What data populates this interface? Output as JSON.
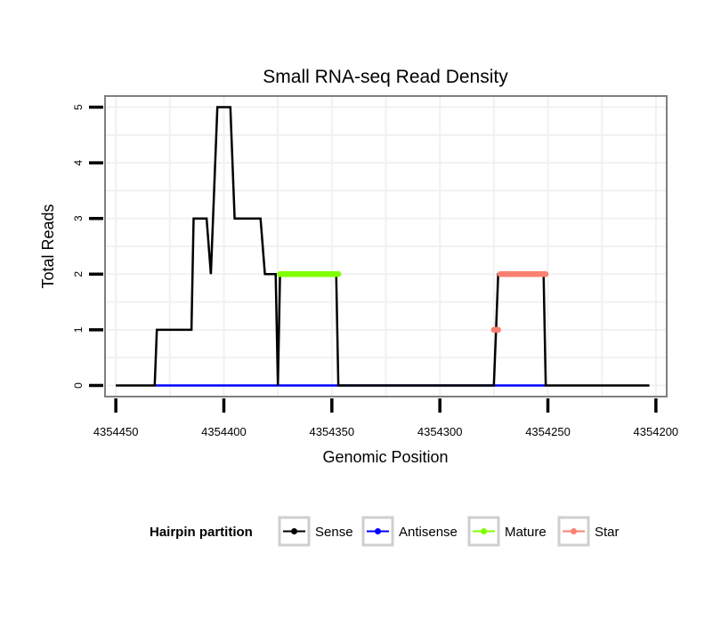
{
  "chart_data": {
    "type": "line",
    "title": "Small RNA-seq Read Density",
    "xlabel": "Genomic Position",
    "ylabel": "Total Reads",
    "x_reversed": true,
    "xlim": [
      4354455,
      4354195
    ],
    "ylim": [
      -0.2,
      5.2
    ],
    "x_ticks": [
      4354450,
      4354400,
      4354350,
      4354300,
      4354250,
      4354200
    ],
    "y_ticks": [
      0,
      1,
      2,
      3,
      4,
      5
    ],
    "x_tick_labels": [
      "4354450",
      "4354400",
      "4354350",
      "4354300",
      "4354250",
      "4354200"
    ],
    "y_tick_labels": [
      "0",
      "1",
      "2",
      "3",
      "4",
      "5"
    ],
    "grid": true,
    "legend": {
      "title": "Hairpin partition",
      "placement": "bottom",
      "entries": [
        {
          "label": "Sense",
          "color": "#000000"
        },
        {
          "label": "Antisense",
          "color": "#0000ff"
        },
        {
          "label": "Mature",
          "color": "#7fff00"
        },
        {
          "label": "Star",
          "color": "#fa8072"
        }
      ]
    },
    "series": [
      {
        "name": "Sense",
        "color": "#000000",
        "points": [
          [
            4354450,
            0
          ],
          [
            4354432,
            0
          ],
          [
            4354431,
            1
          ],
          [
            4354415,
            1
          ],
          [
            4354414,
            3
          ],
          [
            4354408,
            3
          ],
          [
            4354406,
            2
          ],
          [
            4354403,
            5
          ],
          [
            4354397,
            5
          ],
          [
            4354395,
            3
          ],
          [
            4354383,
            3
          ],
          [
            4354381,
            2
          ],
          [
            4354376,
            2
          ],
          [
            4354375,
            0
          ],
          [
            4354374,
            2
          ],
          [
            4354348,
            2
          ],
          [
            4354347,
            0
          ],
          [
            4354275,
            0
          ],
          [
            4354274,
            1
          ],
          [
            4354273,
            2
          ],
          [
            4354252,
            2
          ],
          [
            4354251,
            0
          ],
          [
            4354203,
            0
          ]
        ]
      },
      {
        "name": "Antisense",
        "color": "#0000ff",
        "points": [
          [
            4354432,
            0
          ],
          [
            4354251,
            0
          ]
        ]
      },
      {
        "name": "Mature",
        "color": "#7fff00",
        "segments": [
          {
            "points": [
              [
                4354374,
                2
              ],
              [
                4354347,
                2
              ]
            ]
          }
        ]
      },
      {
        "name": "Star",
        "color": "#fa8072",
        "segments": [
          {
            "points": [
              [
                4354275,
                1
              ],
              [
                4354273,
                1
              ]
            ]
          },
          {
            "points": [
              [
                4354272,
                2
              ],
              [
                4354251,
                2
              ]
            ]
          }
        ]
      }
    ]
  }
}
